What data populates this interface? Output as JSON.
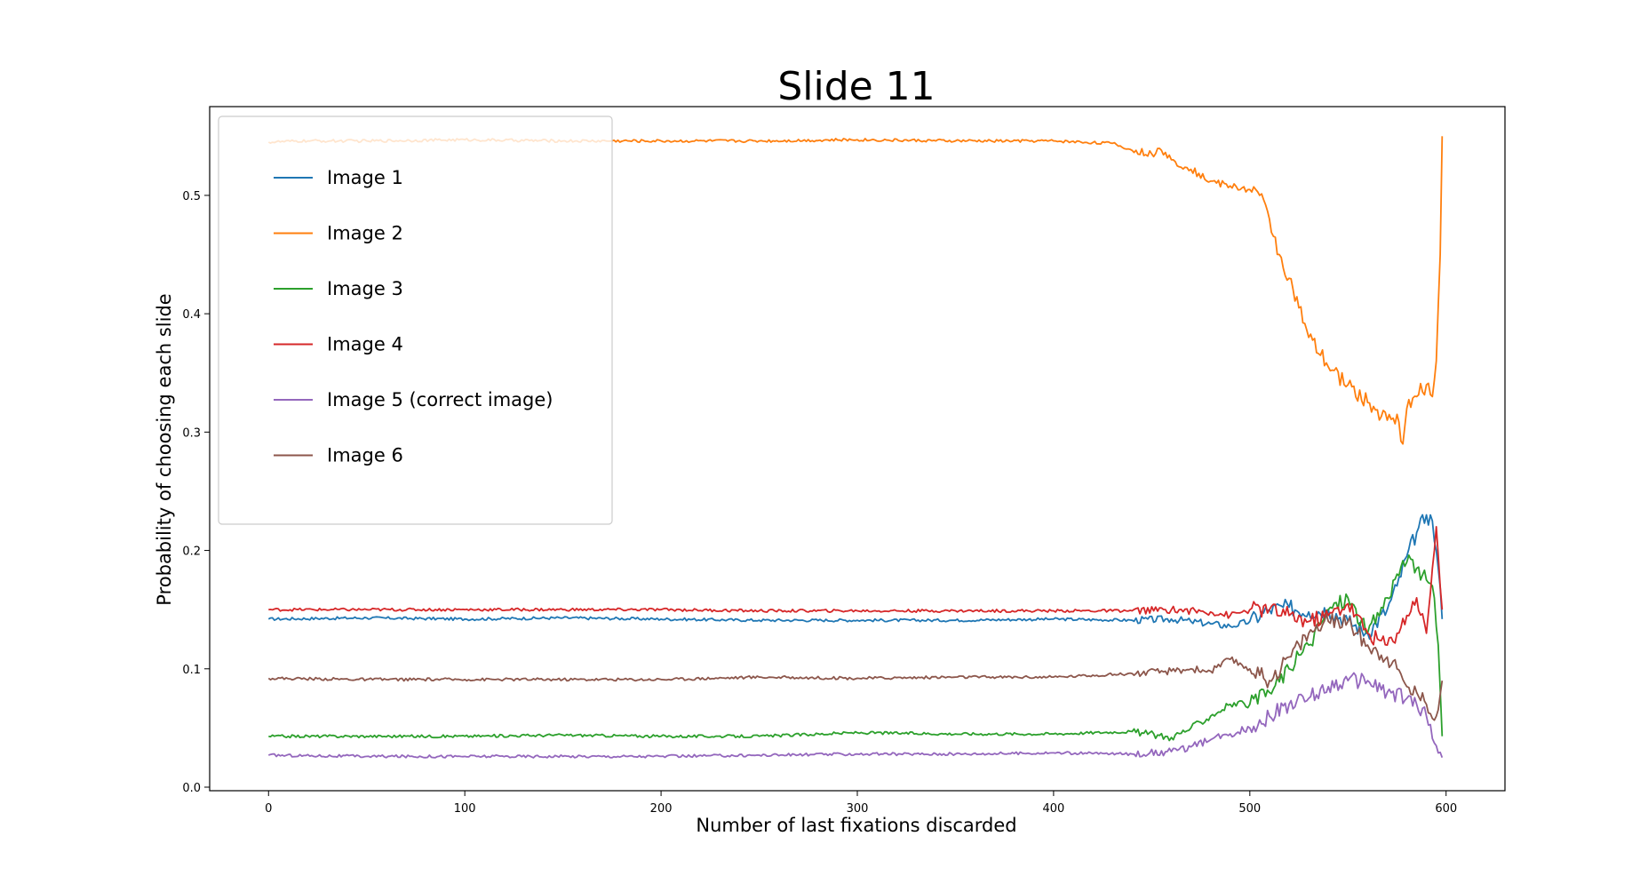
{
  "chart_data": {
    "type": "line",
    "title": "Slide 11",
    "xlabel": "Number of last fixations discarded",
    "ylabel": "Probability of choosing each slide",
    "xlim": [
      -30,
      630
    ],
    "ylim": [
      -0.003,
      0.575
    ],
    "xticks": [
      0,
      100,
      200,
      300,
      400,
      500,
      600
    ],
    "xtick_labels": [
      "0",
      "100",
      "200",
      "300",
      "400",
      "500",
      "600"
    ],
    "yticks": [
      0.0,
      0.1,
      0.2,
      0.3,
      0.4,
      0.5
    ],
    "ytick_labels": [
      "0.0",
      "0.1",
      "0.2",
      "0.3",
      "0.4",
      "0.5"
    ],
    "grid": false,
    "legend_position": "top-left",
    "series": [
      {
        "name": "Image 1",
        "color": "#1f77b4",
        "x": [
          0,
          50,
          100,
          150,
          200,
          250,
          300,
          350,
          400,
          440,
          460,
          470,
          480,
          490,
          500,
          510,
          520,
          530,
          540,
          550,
          560,
          570,
          575,
          580,
          585,
          590,
          593,
          596,
          598
        ],
        "y": [
          0.142,
          0.143,
          0.142,
          0.143,
          0.142,
          0.141,
          0.141,
          0.141,
          0.142,
          0.141,
          0.142,
          0.14,
          0.138,
          0.136,
          0.14,
          0.15,
          0.152,
          0.148,
          0.15,
          0.14,
          0.13,
          0.15,
          0.17,
          0.195,
          0.215,
          0.23,
          0.225,
          0.185,
          0.142
        ]
      },
      {
        "name": "Image 2",
        "color": "#ff7f0e",
        "x": [
          0,
          20,
          50,
          100,
          150,
          200,
          250,
          300,
          350,
          400,
          430,
          440,
          450,
          455,
          460,
          470,
          480,
          490,
          500,
          505,
          510,
          515,
          520,
          525,
          530,
          540,
          550,
          560,
          570,
          575,
          578,
          580,
          585,
          590,
          593,
          595,
          597,
          598
        ],
        "y": [
          0.545,
          0.546,
          0.546,
          0.547,
          0.546,
          0.546,
          0.546,
          0.547,
          0.546,
          0.546,
          0.544,
          0.538,
          0.535,
          0.538,
          0.53,
          0.522,
          0.512,
          0.508,
          0.505,
          0.5,
          0.48,
          0.45,
          0.43,
          0.405,
          0.38,
          0.355,
          0.34,
          0.325,
          0.31,
          0.315,
          0.29,
          0.32,
          0.33,
          0.34,
          0.33,
          0.36,
          0.45,
          0.55
        ]
      },
      {
        "name": "Image 3",
        "color": "#2ca02c",
        "x": [
          0,
          50,
          100,
          150,
          200,
          250,
          300,
          350,
          400,
          440,
          460,
          470,
          480,
          490,
          500,
          510,
          520,
          530,
          540,
          550,
          560,
          570,
          575,
          580,
          585,
          590,
          593,
          596,
          598
        ],
        "y": [
          0.043,
          0.043,
          0.043,
          0.044,
          0.043,
          0.043,
          0.046,
          0.045,
          0.045,
          0.047,
          0.042,
          0.05,
          0.06,
          0.07,
          0.07,
          0.08,
          0.1,
          0.12,
          0.15,
          0.16,
          0.13,
          0.16,
          0.18,
          0.19,
          0.185,
          0.175,
          0.17,
          0.12,
          0.043
        ]
      },
      {
        "name": "Image 4",
        "color": "#d62728",
        "x": [
          0,
          50,
          100,
          150,
          200,
          250,
          300,
          350,
          400,
          440,
          460,
          480,
          490,
          500,
          510,
          520,
          530,
          540,
          550,
          560,
          570,
          575,
          580,
          585,
          590,
          593,
          595,
          598
        ],
        "y": [
          0.15,
          0.15,
          0.15,
          0.15,
          0.15,
          0.149,
          0.149,
          0.149,
          0.149,
          0.149,
          0.15,
          0.148,
          0.145,
          0.15,
          0.15,
          0.145,
          0.14,
          0.145,
          0.155,
          0.13,
          0.12,
          0.13,
          0.145,
          0.16,
          0.13,
          0.185,
          0.22,
          0.15
        ]
      },
      {
        "name": "Image 5 (correct image)",
        "color": "#9467bd",
        "x": [
          0,
          50,
          100,
          150,
          200,
          250,
          300,
          350,
          400,
          440,
          460,
          470,
          480,
          490,
          500,
          510,
          520,
          530,
          540,
          550,
          560,
          570,
          580,
          585,
          590,
          595,
          598
        ],
        "y": [
          0.027,
          0.026,
          0.026,
          0.026,
          0.026,
          0.027,
          0.028,
          0.028,
          0.029,
          0.028,
          0.03,
          0.034,
          0.04,
          0.045,
          0.05,
          0.06,
          0.07,
          0.075,
          0.085,
          0.09,
          0.09,
          0.08,
          0.075,
          0.07,
          0.06,
          0.035,
          0.025
        ]
      },
      {
        "name": "Image 6",
        "color": "#8c564b",
        "x": [
          0,
          50,
          100,
          150,
          200,
          250,
          300,
          350,
          400,
          440,
          460,
          470,
          480,
          490,
          500,
          510,
          520,
          530,
          540,
          550,
          560,
          570,
          575,
          580,
          585,
          590,
          595,
          598
        ],
        "y": [
          0.092,
          0.091,
          0.091,
          0.091,
          0.091,
          0.093,
          0.092,
          0.093,
          0.093,
          0.096,
          0.098,
          0.1,
          0.098,
          0.108,
          0.1,
          0.09,
          0.11,
          0.13,
          0.14,
          0.14,
          0.12,
          0.11,
          0.1,
          0.085,
          0.08,
          0.07,
          0.06,
          0.09
        ]
      }
    ]
  }
}
